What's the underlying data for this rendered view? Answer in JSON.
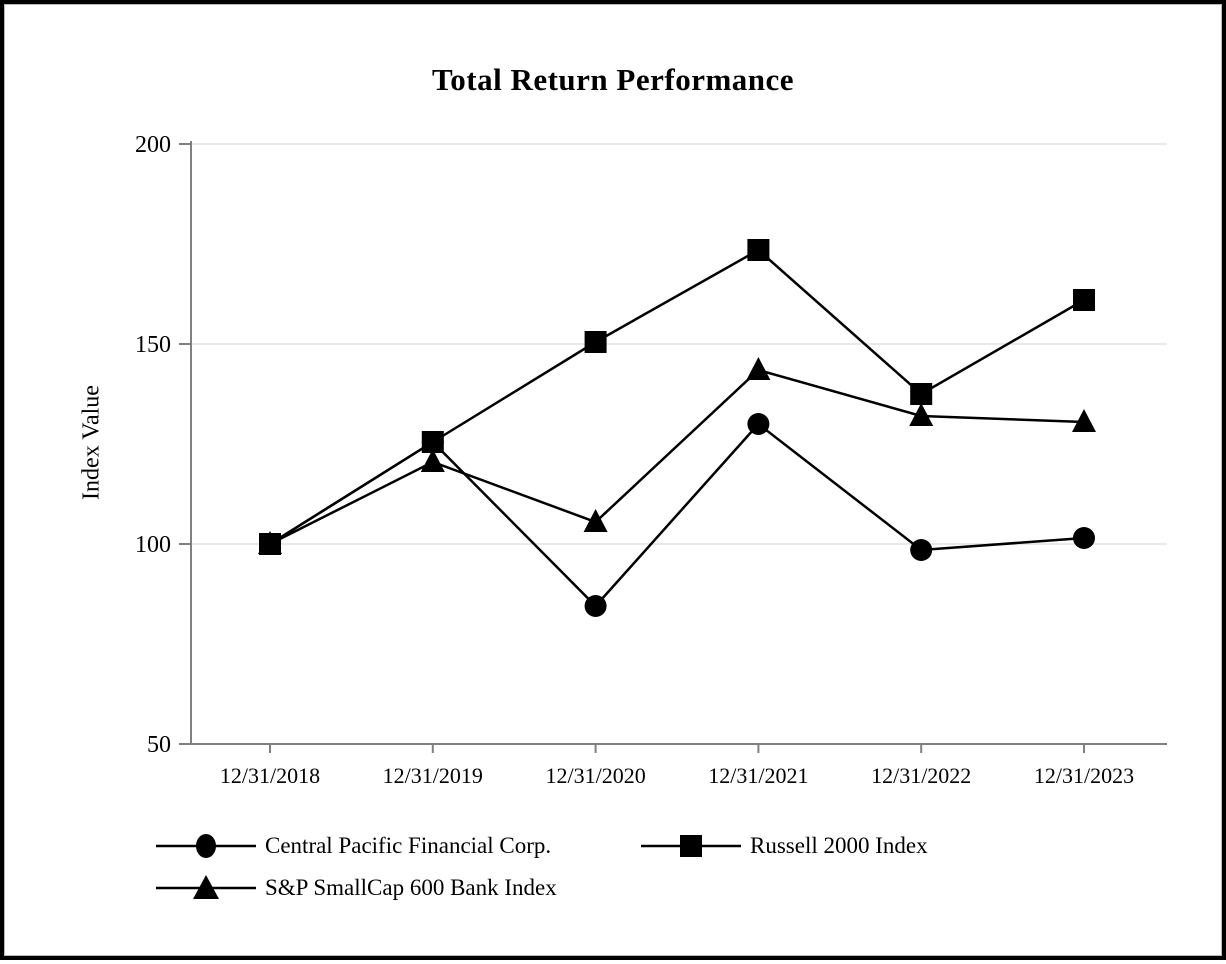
{
  "chart_data": {
    "type": "line",
    "title": "Total Return Performance",
    "xlabel": "",
    "ylabel": "Index Value",
    "ylim": [
      50,
      200
    ],
    "yticks": [
      200,
      150,
      100,
      50
    ],
    "gridline_values": [
      200,
      150,
      100
    ],
    "grid": "horizontal-light",
    "legend_position": "bottom",
    "categories": [
      "12/31/2018",
      "12/31/2019",
      "12/31/2020",
      "12/31/2021",
      "12/31/2022",
      "12/31/2023"
    ],
    "series": [
      {
        "name": "Central Pacific Financial Corp.",
        "marker": "circle",
        "values": [
          100,
          125.5,
          84.5,
          130,
          98.5,
          101.5
        ]
      },
      {
        "name": "Russell 2000 Index",
        "marker": "square",
        "values": [
          100,
          125.5,
          150.5,
          173.5,
          137.5,
          161
        ]
      },
      {
        "name": "S&P SmallCap 600 Bank Index",
        "marker": "triangle",
        "values": [
          100,
          120.5,
          105.5,
          143.5,
          132,
          130.5
        ]
      }
    ],
    "colors": {
      "series": "#000000",
      "axis": "#808080",
      "gridline": "#e9e9e9",
      "text": "#000000",
      "background": "#ffffff",
      "frame_border": "#000000"
    }
  }
}
